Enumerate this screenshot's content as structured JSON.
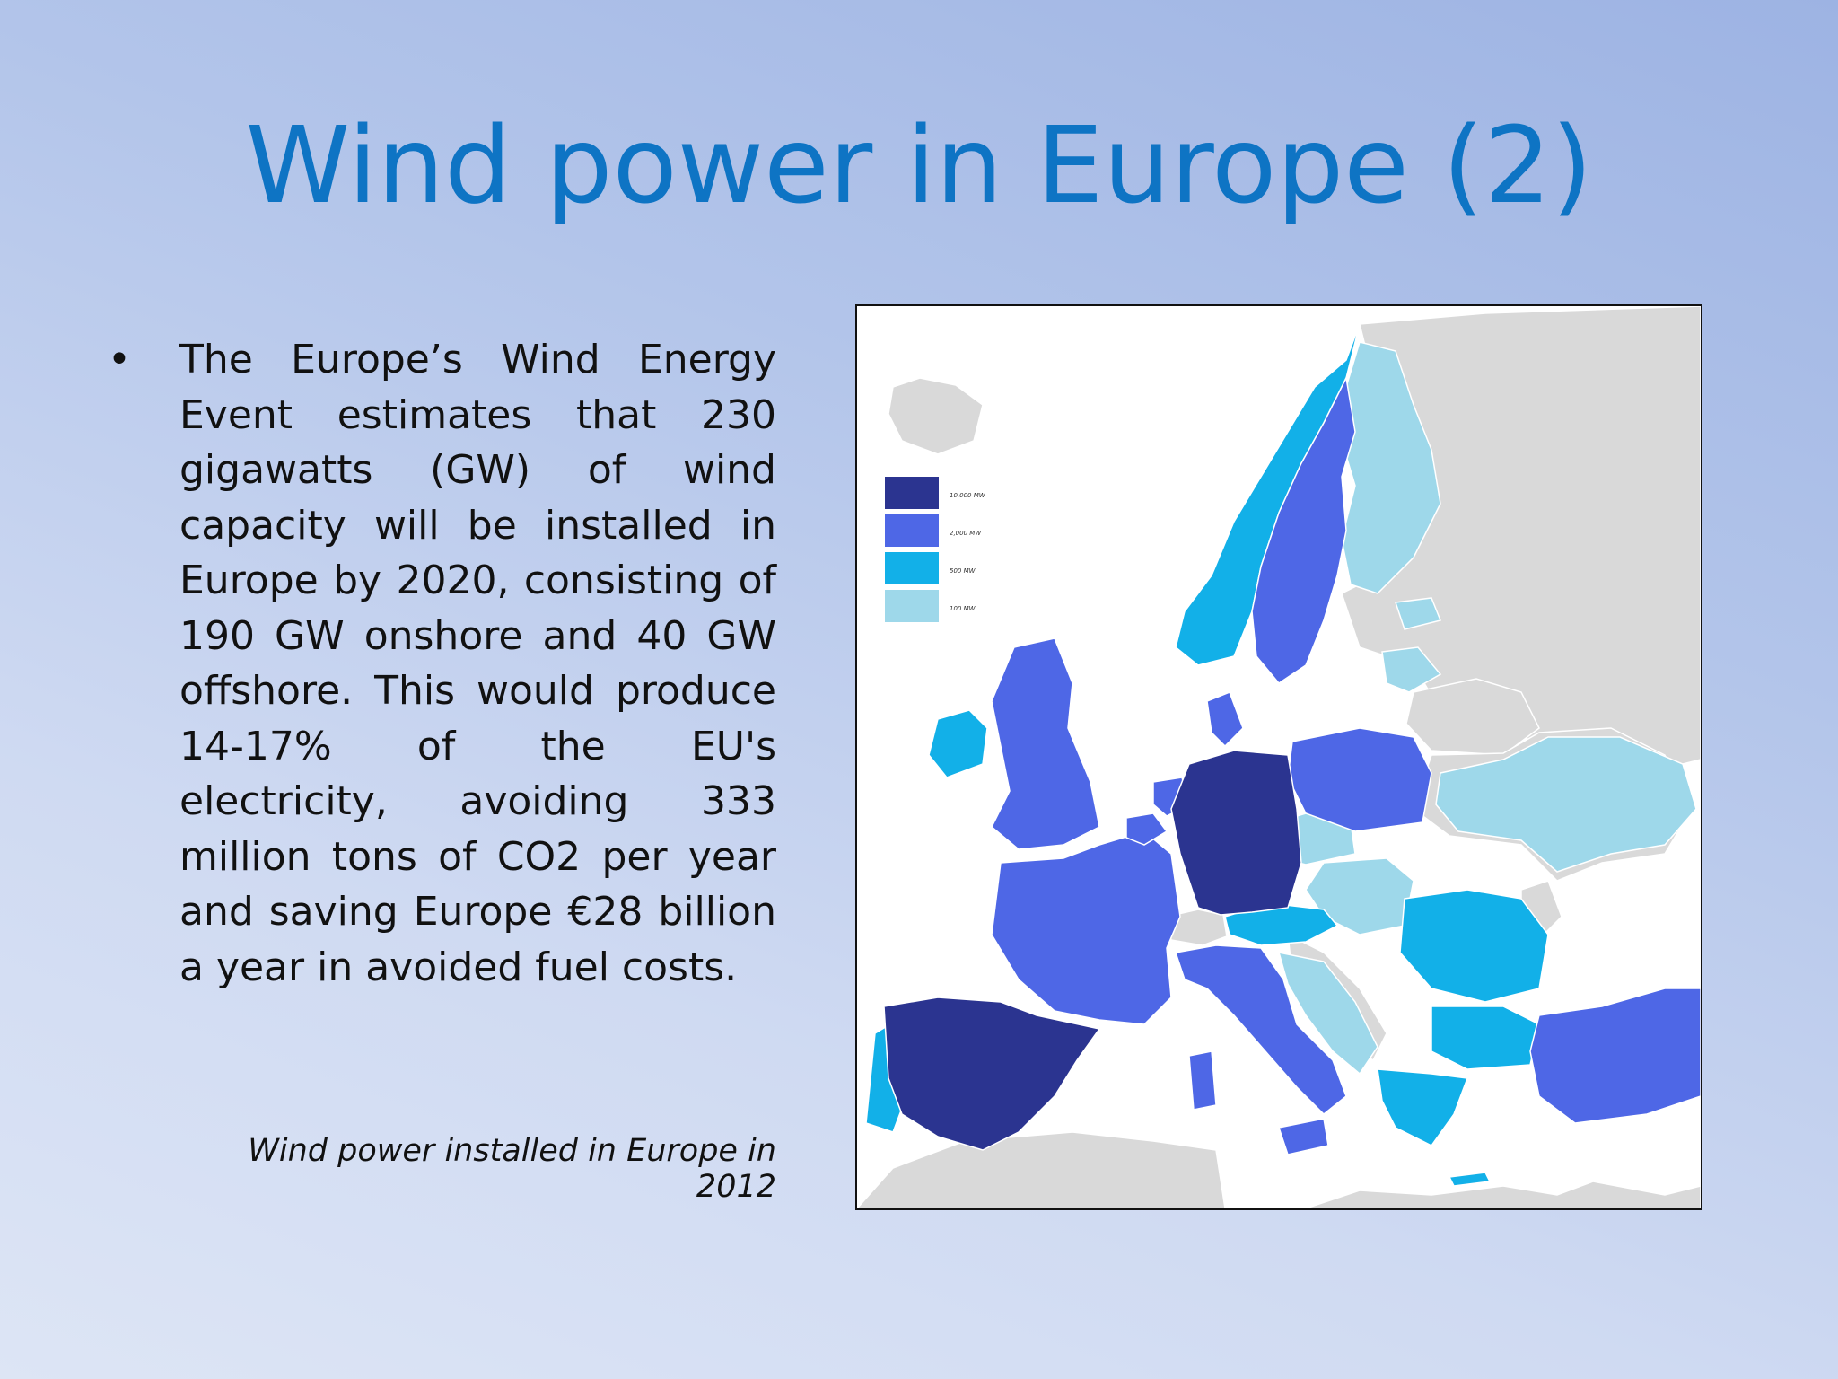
{
  "slide": {
    "title": "Wind power in Europe (2)",
    "bullet_symbol": "•",
    "bullet_text": "The Europe’s Wind Energy Event estimates that 230 gigawatts (GW) of wind capacity will be installed in Europe by 2020, consisting of 190 GW onshore and 40 GW offshore. This would produce 14-17% of the EU's electricity, avoiding 333 million tons of CO2 per year and saving Europe €28 billion a year in avoided fuel costs.",
    "caption": "Wind power installed in Europe in 2012"
  },
  "map": {
    "legend": [
      {
        "label": "10,000 MW",
        "color": "#2b3490"
      },
      {
        "label": "2,000 MW",
        "color": "#4e67e6"
      },
      {
        "label": "500 MW",
        "color": "#12b0e8"
      },
      {
        "label": "100 MW",
        "color": "#9ed8ea"
      }
    ],
    "colors": {
      "no_data": "#d9d9d9",
      "sea": "#ffffff",
      "border": "#ffffff"
    }
  }
}
